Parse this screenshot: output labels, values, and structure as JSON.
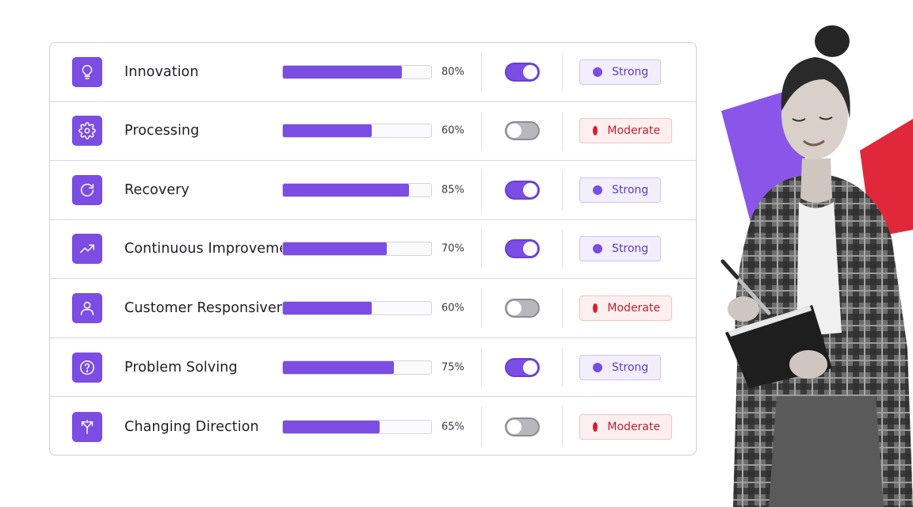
{
  "rows": [
    {
      "icon": "lightbulb-icon",
      "label": "Innovation",
      "percent_text": "80%",
      "percent": 80,
      "toggle_on": true,
      "status": "Strong",
      "status_kind": "strong"
    },
    {
      "icon": "gear-icon",
      "label": "Processing",
      "percent_text": "60%",
      "percent": 60,
      "toggle_on": false,
      "status": "Moderate",
      "status_kind": "moderate"
    },
    {
      "icon": "refresh-icon",
      "label": "Recovery",
      "percent_text": "85%",
      "percent": 85,
      "toggle_on": true,
      "status": "Strong",
      "status_kind": "strong"
    },
    {
      "icon": "trend-up-icon",
      "label": "Continuous Improvement",
      "percent_text": "70%",
      "percent": 70,
      "toggle_on": true,
      "status": "Strong",
      "status_kind": "strong"
    },
    {
      "icon": "user-icon",
      "label": "Customer Responsiveness",
      "percent_text": "60%",
      "percent": 60,
      "toggle_on": false,
      "status": "Moderate",
      "status_kind": "moderate"
    },
    {
      "icon": "question-icon",
      "label": "Problem Solving",
      "percent_text": "75%",
      "percent": 75,
      "toggle_on": true,
      "status": "Strong",
      "status_kind": "strong"
    },
    {
      "icon": "split-arrows-icon",
      "label": "Changing Direction",
      "percent_text": "65%",
      "percent": 65,
      "toggle_on": false,
      "status": "Moderate",
      "status_kind": "moderate"
    }
  ],
  "colors": {
    "accent": "#7b4de3",
    "strong_bg": "#f2eefc",
    "moderate": "#d81f2c",
    "moderate_bg": "#fdeff0",
    "illustration_purple": "#8a56ea",
    "illustration_red": "#e0283a"
  },
  "illustration": {
    "subject": "woman-writing-in-notebook-image"
  }
}
